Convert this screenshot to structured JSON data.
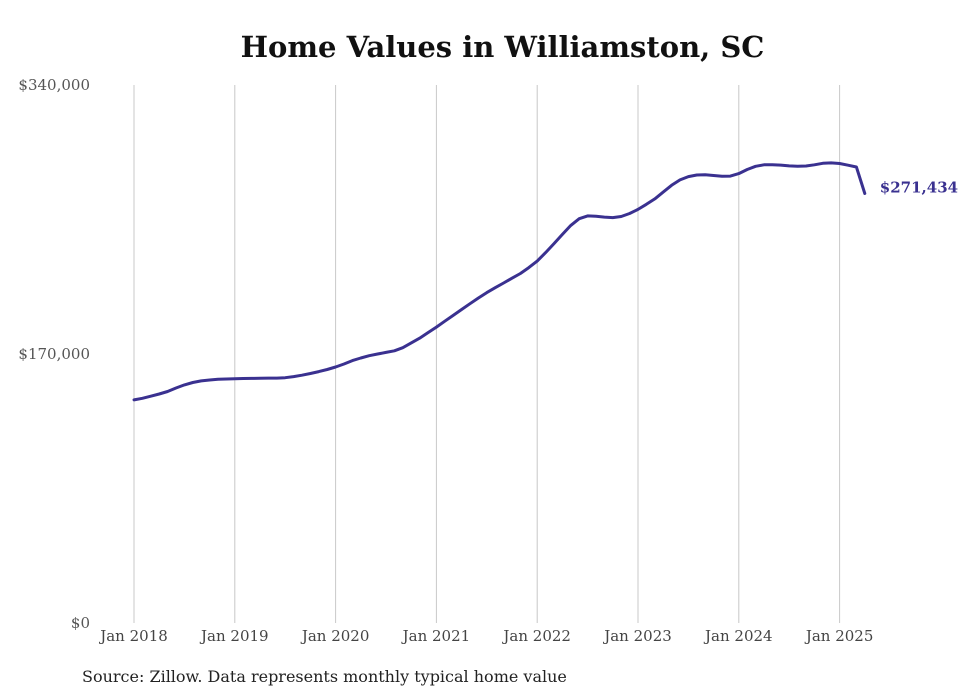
{
  "chart_data": {
    "type": "line",
    "title": "Home Values in Williamston, SC",
    "xlabel": "",
    "ylabel": "",
    "ylim": [
      0,
      340000
    ],
    "y_ticks": [
      "$340,000",
      "$170,000",
      "$0"
    ],
    "x_ticks": [
      "Jan 2018",
      "Jan 2019",
      "Jan 2020",
      "Jan 2021",
      "Jan 2022",
      "Jan 2023",
      "Jan 2024",
      "Jan 2025"
    ],
    "grid": "vertical",
    "line_color": "#3a3190",
    "end_label": "$271,434",
    "x": [
      "2018-01",
      "2018-02",
      "2018-03",
      "2018-04",
      "2018-05",
      "2018-06",
      "2018-07",
      "2018-08",
      "2018-09",
      "2018-10",
      "2018-11",
      "2018-12",
      "2019-01",
      "2019-02",
      "2019-03",
      "2019-04",
      "2019-05",
      "2019-06",
      "2019-07",
      "2019-08",
      "2019-09",
      "2019-10",
      "2019-11",
      "2019-12",
      "2020-01",
      "2020-02",
      "2020-03",
      "2020-04",
      "2020-05",
      "2020-06",
      "2020-07",
      "2020-08",
      "2020-09",
      "2020-10",
      "2020-11",
      "2020-12",
      "2021-01",
      "2021-02",
      "2021-03",
      "2021-04",
      "2021-05",
      "2021-06",
      "2021-07",
      "2021-08",
      "2021-09",
      "2021-10",
      "2021-11",
      "2021-12",
      "2022-01",
      "2022-02",
      "2022-03",
      "2022-04",
      "2022-05",
      "2022-06",
      "2022-07",
      "2022-08",
      "2022-09",
      "2022-10",
      "2022-11",
      "2022-12",
      "2023-01",
      "2023-02",
      "2023-03",
      "2023-04",
      "2023-05",
      "2023-06",
      "2023-07",
      "2023-08",
      "2023-09",
      "2023-10",
      "2023-11",
      "2023-12",
      "2024-01",
      "2024-02",
      "2024-03",
      "2024-04",
      "2024-05",
      "2024-06",
      "2024-07",
      "2024-08",
      "2024-09",
      "2024-10",
      "2024-11",
      "2024-12",
      "2025-01",
      "2025-02",
      "2025-03",
      "2025-04"
    ],
    "values": [
      141000,
      142000,
      143300,
      144700,
      146300,
      148500,
      150500,
      152000,
      153000,
      153600,
      154000,
      154200,
      154400,
      154500,
      154600,
      154700,
      154800,
      154800,
      155000,
      155700,
      156600,
      157700,
      158900,
      160200,
      161800,
      163700,
      165800,
      167500,
      168900,
      170000,
      171000,
      172000,
      174000,
      177000,
      180000,
      183500,
      187000,
      190700,
      194400,
      198100,
      201800,
      205400,
      208800,
      211900,
      214900,
      217900,
      220900,
      224600,
      228700,
      234100,
      239800,
      245600,
      251300,
      255500,
      257300,
      257000,
      256500,
      256200,
      256900,
      258800,
      261400,
      264600,
      268000,
      272300,
      276600,
      280000,
      282100,
      283100,
      283300,
      282800,
      282300,
      282400,
      284000,
      286600,
      288600,
      289600,
      289600,
      289400,
      288900,
      288600,
      288800,
      289600,
      290500,
      290800,
      290400,
      289300,
      288200,
      271434
    ]
  },
  "footer": {
    "source": "Source: Zillow. Data represents monthly typical home value"
  }
}
